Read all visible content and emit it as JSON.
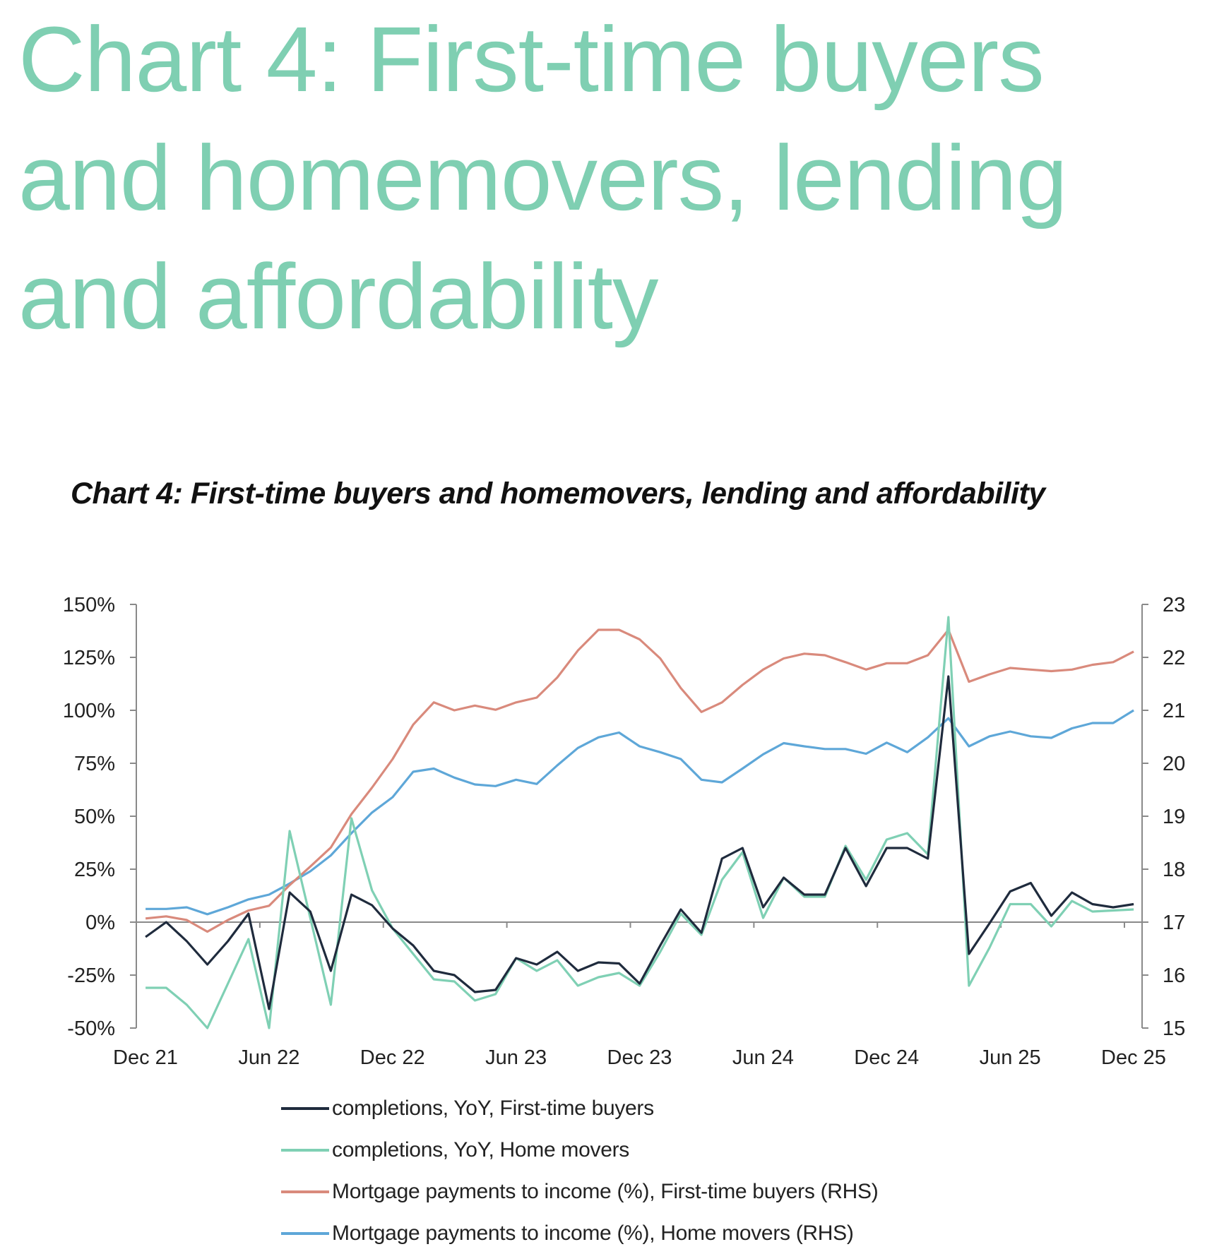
{
  "page": {
    "heading": "Chart 4: First-time buyers and homemovers, lending and affordability",
    "heading_color": "#7fcfb2"
  },
  "chart_data": {
    "type": "line",
    "title": "Chart 4: First-time buyers and homemovers, lending and affordability",
    "xlabel": "",
    "ylabel_left": "",
    "ylabel_right": "",
    "x_tick_labels": [
      "Dec 21",
      "Jun 22",
      "Dec 22",
      "Jun 23",
      "Dec 23",
      "Jun 24",
      "Dec 24",
      "Jun 25",
      "Dec 25"
    ],
    "y_left": {
      "range": [
        -50,
        150
      ],
      "ticks": [
        150,
        125,
        100,
        75,
        50,
        25,
        0,
        -25,
        -50
      ],
      "tick_labels": [
        "150%",
        "125%",
        "100%",
        "75%",
        "50%",
        "25%",
        "0%",
        "-25%",
        "-50%"
      ]
    },
    "y_right": {
      "range": [
        15,
        23
      ],
      "ticks": [
        23,
        22,
        21,
        20,
        19,
        18,
        17,
        16,
        15
      ],
      "tick_labels": [
        "23",
        "22",
        "21",
        "20",
        "19",
        "18",
        "17",
        "16",
        "15"
      ]
    },
    "grid": false,
    "legend_position": "bottom",
    "x": [
      "2021-12",
      "2022-01",
      "2022-02",
      "2022-03",
      "2022-04",
      "2022-05",
      "2022-06",
      "2022-07",
      "2022-08",
      "2022-09",
      "2022-10",
      "2022-11",
      "2022-12",
      "2023-01",
      "2023-02",
      "2023-03",
      "2023-04",
      "2023-05",
      "2023-06",
      "2023-07",
      "2023-08",
      "2023-09",
      "2023-10",
      "2023-11",
      "2023-12",
      "2024-01",
      "2024-02",
      "2024-03",
      "2024-04",
      "2024-05",
      "2024-06",
      "2024-07",
      "2024-08",
      "2024-09",
      "2024-10",
      "2024-11",
      "2024-12",
      "2025-01",
      "2025-02",
      "2025-03",
      "2025-04",
      "2025-05",
      "2025-06",
      "2025-07",
      "2025-08",
      "2025-09",
      "2025-10",
      "2025-11",
      "2025-12"
    ],
    "series": [
      {
        "name": "completions, YoY, First-time buyers",
        "axis": "left",
        "color": "#1f2b3d",
        "values": [
          -7,
          0,
          -9,
          -20,
          -9,
          4,
          -41,
          14,
          5,
          -23,
          13,
          8,
          -3,
          -11,
          -23,
          -25,
          -33,
          -32,
          -17,
          -20,
          -14,
          -23,
          -19,
          -19.5,
          -29,
          -11,
          6,
          -5,
          30,
          35,
          7,
          21,
          13,
          13,
          35,
          17,
          35,
          35,
          30,
          116,
          -15,
          -0.5,
          14.5,
          18.5,
          3,
          14,
          8.5,
          7,
          8.5
        ]
      },
      {
        "name": "completions, YoY, Home movers",
        "axis": "left",
        "color": "#7fd0b4",
        "values": [
          -31,
          -31,
          -39,
          -50,
          -29,
          -8,
          -50,
          43,
          2,
          -39,
          49,
          15,
          -3,
          -15,
          -27,
          -28,
          -37,
          -34,
          -17,
          -23,
          -18,
          -30,
          -26,
          -24,
          -30,
          -14,
          4,
          -6,
          20,
          33,
          2,
          21,
          12,
          12,
          36,
          20,
          39,
          42,
          32,
          144,
          -30,
          -12,
          8.5,
          8.5,
          -2,
          10,
          5,
          5.5,
          6
        ]
      },
      {
        "name": "Mortgage payments to income (%), First-time buyers (RHS)",
        "axis": "right",
        "color": "#d98a7c",
        "values": [
          17.07,
          17.11,
          17.04,
          16.82,
          17.04,
          17.22,
          17.31,
          17.7,
          18.05,
          18.41,
          19.04,
          19.54,
          20.08,
          20.73,
          21.15,
          21.0,
          21.09,
          21.01,
          21.15,
          21.24,
          21.62,
          22.13,
          22.52,
          22.52,
          22.34,
          21.98,
          21.42,
          20.97,
          21.15,
          21.48,
          21.77,
          21.98,
          22.07,
          22.04,
          21.91,
          21.77,
          21.89,
          21.89,
          22.04,
          22.52,
          21.54,
          21.68,
          21.8,
          21.77,
          21.74,
          21.77,
          21.86,
          21.91,
          22.11
        ]
      },
      {
        "name": "Mortgage payments to income (%), Home movers (RHS)",
        "axis": "right",
        "color": "#5ea7d8",
        "values": [
          17.25,
          17.25,
          17.28,
          17.15,
          17.28,
          17.43,
          17.52,
          17.73,
          17.96,
          18.26,
          18.68,
          19.07,
          19.36,
          19.84,
          19.9,
          19.73,
          19.6,
          19.57,
          19.69,
          19.61,
          19.96,
          20.29,
          20.49,
          20.58,
          20.32,
          20.21,
          20.08,
          19.69,
          19.64,
          19.9,
          20.17,
          20.38,
          20.32,
          20.27,
          20.27,
          20.18,
          20.39,
          20.21,
          20.49,
          20.85,
          20.32,
          20.51,
          20.6,
          20.51,
          20.48,
          20.66,
          20.76,
          20.76,
          21.0
        ]
      }
    ]
  }
}
